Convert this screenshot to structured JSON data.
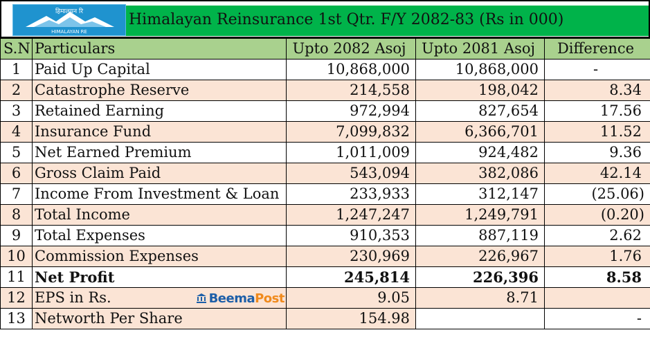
{
  "header": {
    "logo": {
      "text": "HIMALAYAN RE",
      "script_text": "हिमालयन रि",
      "colors": {
        "background": "#1f93cf",
        "mountain": "#ffffff"
      }
    },
    "title": "Himalayan Reinsurance 1st Qtr. F/Y 2082-83   (Rs in 000)"
  },
  "colors": {
    "header_row": "#a9d18e",
    "title_band": "#00b34a",
    "shaded_row": "#fbe4d5"
  },
  "watermark": {
    "part1": "Beema",
    "part2": "Post",
    "icon": "bank-icon"
  },
  "table": {
    "columns": [
      "S.N",
      "Particulars",
      "Upto 2082 Asoj",
      "Upto 2081 Asoj",
      "Difference"
    ],
    "rows": [
      {
        "sn": "1",
        "particular": "Paid Up Capital",
        "current": "10,868,000",
        "previous": "10,868,000",
        "difference": "-"
      },
      {
        "sn": "2",
        "particular": "Catastrophe Reserve",
        "current": "214,558",
        "previous": "198,042",
        "difference": "8.34"
      },
      {
        "sn": "3",
        "particular": "Retained Earning",
        "current": "972,994",
        "previous": "827,654",
        "difference": "17.56"
      },
      {
        "sn": "4",
        "particular": "Insurance Fund",
        "current": "7,099,832",
        "previous": "6,366,701",
        "difference": "11.52"
      },
      {
        "sn": "5",
        "particular": "Net Earned Premium",
        "current": "1,011,009",
        "previous": "924,482",
        "difference": "9.36"
      },
      {
        "sn": "6",
        "particular": "Gross Claim Paid",
        "current": "543,094",
        "previous": "382,086",
        "difference": "42.14"
      },
      {
        "sn": "7",
        "particular": "Income From Investment & Loan",
        "current": "233,933",
        "previous": "312,147",
        "difference": "(25.06)"
      },
      {
        "sn": "8",
        "particular": "Total Income",
        "current": "1,247,247",
        "previous": "1,249,791",
        "difference": "(0.20)"
      },
      {
        "sn": "9",
        "particular": "Total Expenses",
        "current": "910,353",
        "previous": "887,119",
        "difference": "2.62"
      },
      {
        "sn": "10",
        "particular": "Commission Expenses",
        "current": "230,969",
        "previous": "226,967",
        "difference": "1.76"
      },
      {
        "sn": "11",
        "particular": "Net Profit",
        "current": "245,814",
        "previous": "226,396",
        "difference": "8.58"
      },
      {
        "sn": "12",
        "particular": "EPS in Rs.",
        "current": "9.05",
        "previous": "8.71",
        "difference": ""
      },
      {
        "sn": "13",
        "particular": "Networth Per Share",
        "current": "154.98",
        "previous": "",
        "difference": "-"
      }
    ]
  }
}
